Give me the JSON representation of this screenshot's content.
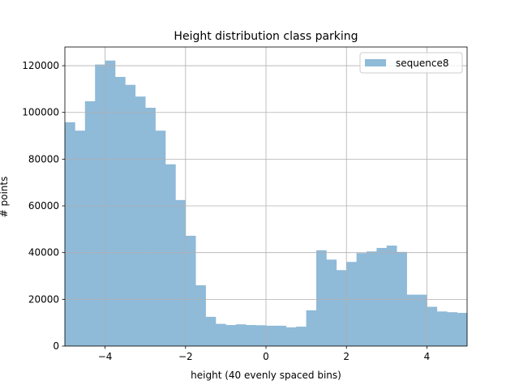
{
  "chart_data": {
    "type": "bar",
    "title": "Height distribution class parking",
    "xlabel": "height (40 evenly spaced bins)",
    "ylabel": "# points",
    "xlim": [
      -5,
      5
    ],
    "ylim": [
      0,
      128000
    ],
    "xticks": [
      -4,
      -2,
      0,
      2,
      4
    ],
    "xtick_labels": [
      "−4",
      "−2",
      "0",
      "2",
      "4"
    ],
    "yticks": [
      0,
      20000,
      40000,
      60000,
      80000,
      100000,
      120000
    ],
    "ytick_labels": [
      "0",
      "20000",
      "40000",
      "60000",
      "80000",
      "100000",
      "120000"
    ],
    "grid": true,
    "legend_position": "top-right",
    "bar_color": "#8fbad8",
    "bin_edges_range": [
      -5,
      5
    ],
    "bin_count": 40,
    "series": [
      {
        "name": "sequence8",
        "values": [
          95800,
          92200,
          104800,
          120500,
          122200,
          115200,
          111800,
          106800,
          102000,
          92200,
          77800,
          62500,
          47200,
          26000,
          12500,
          9500,
          9000,
          9300,
          9000,
          8900,
          8700,
          8700,
          8000,
          8300,
          15300,
          41000,
          37000,
          32500,
          36000,
          39800,
          40500,
          42000,
          43000,
          40300,
          22000,
          22000,
          16800,
          14800,
          14500,
          14200
        ]
      }
    ]
  }
}
